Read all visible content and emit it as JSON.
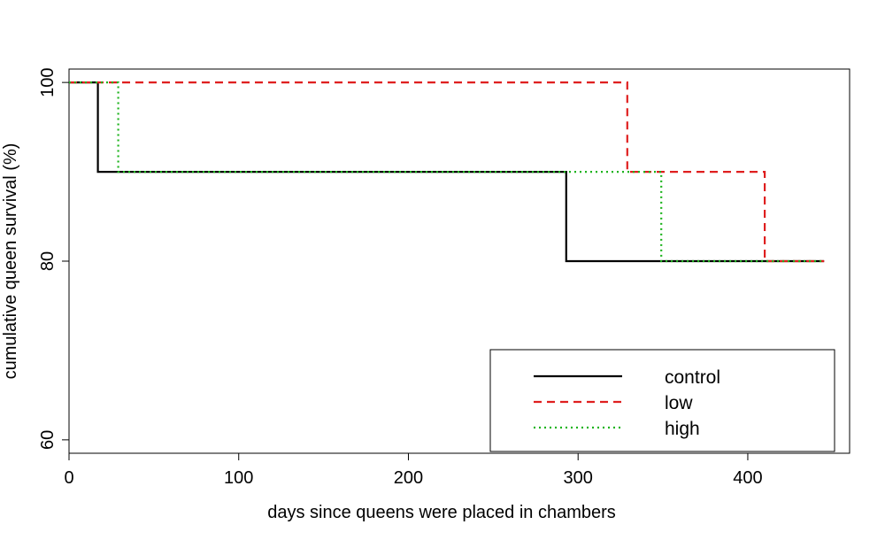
{
  "chart_data": {
    "type": "line",
    "step": true,
    "xlabel": "days since queens were placed in chambers",
    "ylabel": "cumulative queen survival (%)",
    "xlim": [
      0,
      460
    ],
    "ylim": [
      58.5,
      101.5
    ],
    "xticks": [
      0,
      100,
      200,
      300,
      400
    ],
    "yticks": [
      60,
      80,
      100
    ],
    "legend_position": "bottom-right",
    "series": [
      {
        "name": "control",
        "color": "#000000",
        "dash": "solid",
        "x": [
          0,
          17,
          17,
          293,
          293,
          445
        ],
        "y": [
          100,
          100,
          90,
          90,
          80,
          80
        ]
      },
      {
        "name": "low",
        "color": "#DF1F1F",
        "dash": "dashed",
        "x": [
          0,
          329,
          329,
          410,
          410,
          445
        ],
        "y": [
          100,
          100,
          90,
          90,
          80,
          80
        ]
      },
      {
        "name": "high",
        "color": "#1DB31D",
        "dash": "dotted",
        "x": [
          0,
          29,
          29,
          349,
          349,
          445
        ],
        "y": [
          100,
          100,
          90,
          90,
          80,
          80
        ]
      }
    ]
  }
}
